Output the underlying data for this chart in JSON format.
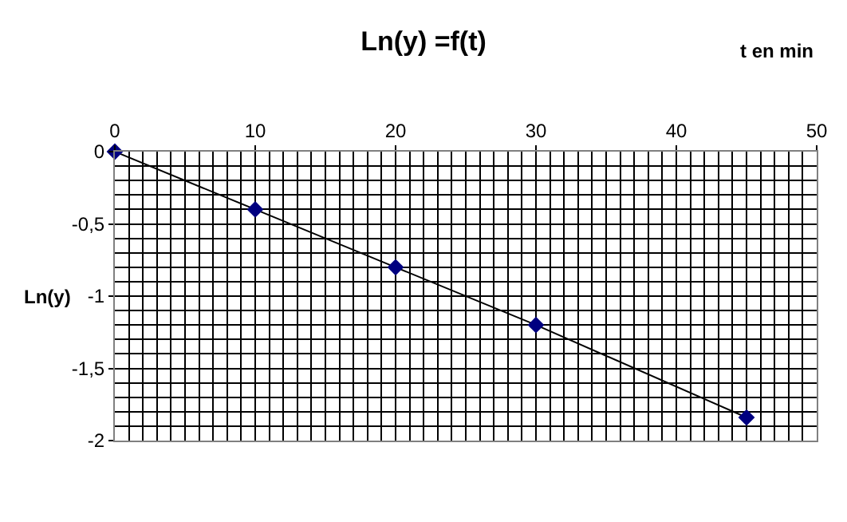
{
  "chart_data": {
    "type": "line",
    "title": "Ln(y) =f(t)",
    "xlabel": "t en min",
    "ylabel": "Ln(y)",
    "x": [
      0,
      10,
      20,
      30,
      45
    ],
    "series": [
      {
        "color": "#000080",
        "values": [
          0,
          -0.4,
          -0.8,
          -1.2,
          -1.84
        ]
      }
    ],
    "xlim": [
      0,
      50
    ],
    "xticks": [
      0,
      10,
      20,
      30,
      40,
      50
    ],
    "ylim": [
      -2,
      0
    ],
    "yticks": [
      {
        "value": -2,
        "label": "-2"
      },
      {
        "value": -1.5,
        "label": "-1,5"
      },
      {
        "value": -1,
        "label": "-1"
      },
      {
        "value": -0.5,
        "label": "-0,5"
      },
      {
        "value": 0,
        "label": "0"
      }
    ],
    "grid": true,
    "marker": "diamond",
    "line_style": "solid",
    "legend": false
  }
}
